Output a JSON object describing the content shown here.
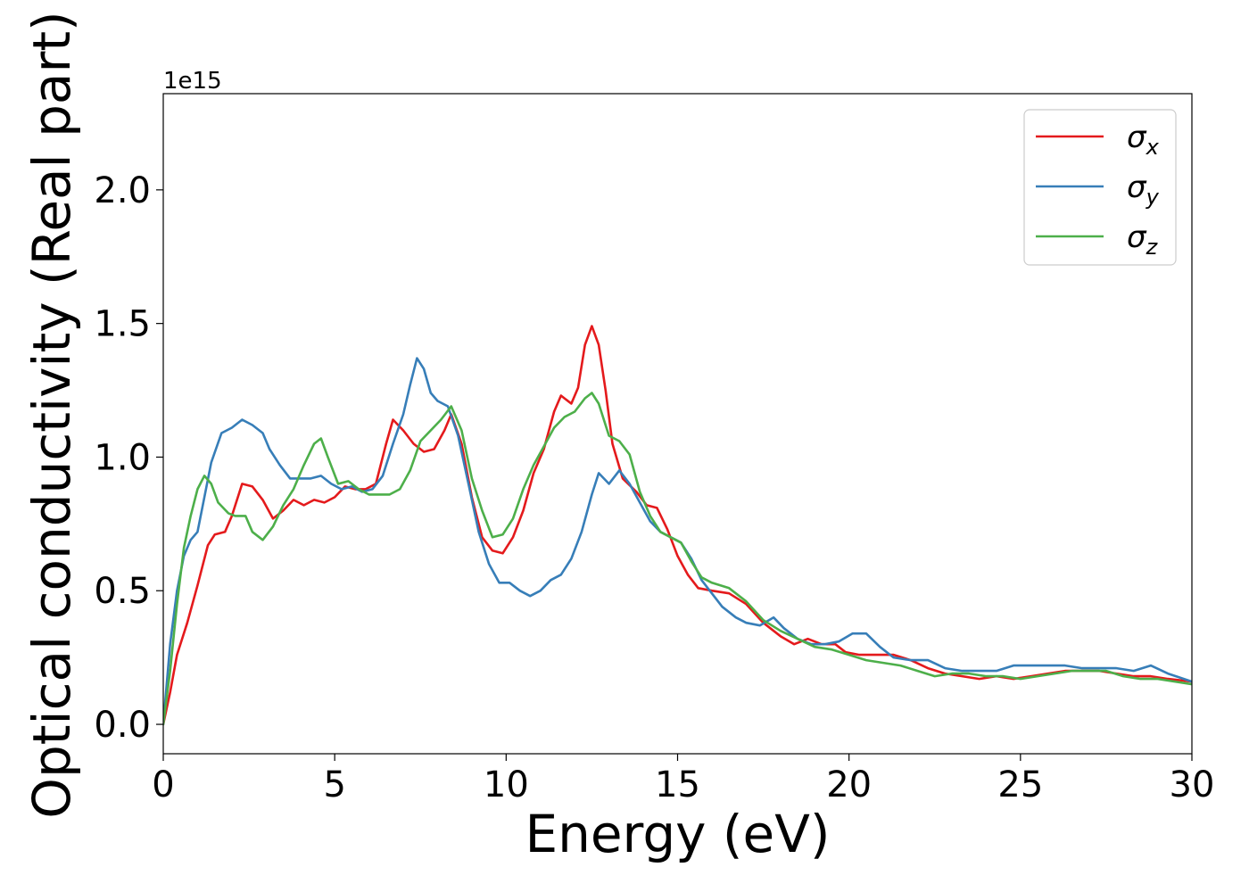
{
  "chart_data": {
    "type": "line",
    "xlabel": "Energy (eV)",
    "ylabel": "Optical conductivity (Real part)",
    "y_offset_label": "1e15",
    "xlim": [
      0,
      30
    ],
    "ylim": [
      -0.11,
      2.36
    ],
    "xticks": [
      0,
      5,
      10,
      15,
      20,
      25,
      30
    ],
    "xtick_labels": [
      "0",
      "5",
      "10",
      "15",
      "20",
      "25",
      "30"
    ],
    "yticks": [
      0.0,
      0.5,
      1.0,
      1.5,
      2.0
    ],
    "ytick_labels": [
      "0.0",
      "0.5",
      "1.0",
      "1.5",
      "2.0"
    ],
    "legend_position": "top-right",
    "grid": false,
    "series": [
      {
        "name": "σx",
        "legend_base": "σ",
        "legend_sub": "x",
        "color": "#e41a1c",
        "points": [
          [
            0,
            0.0
          ],
          [
            0.2,
            0.12
          ],
          [
            0.4,
            0.26
          ],
          [
            0.7,
            0.38
          ],
          [
            1.0,
            0.52
          ],
          [
            1.3,
            0.67
          ],
          [
            1.5,
            0.71
          ],
          [
            1.8,
            0.72
          ],
          [
            2.0,
            0.78
          ],
          [
            2.3,
            0.9
          ],
          [
            2.6,
            0.89
          ],
          [
            2.9,
            0.84
          ],
          [
            3.2,
            0.77
          ],
          [
            3.5,
            0.8
          ],
          [
            3.8,
            0.84
          ],
          [
            4.1,
            0.82
          ],
          [
            4.4,
            0.84
          ],
          [
            4.7,
            0.83
          ],
          [
            5.0,
            0.85
          ],
          [
            5.3,
            0.89
          ],
          [
            5.6,
            0.88
          ],
          [
            5.9,
            0.88
          ],
          [
            6.2,
            0.9
          ],
          [
            6.5,
            1.05
          ],
          [
            6.7,
            1.14
          ],
          [
            7.0,
            1.1
          ],
          [
            7.3,
            1.05
          ],
          [
            7.6,
            1.02
          ],
          [
            7.9,
            1.03
          ],
          [
            8.2,
            1.1
          ],
          [
            8.4,
            1.16
          ],
          [
            8.7,
            1.05
          ],
          [
            9.0,
            0.85
          ],
          [
            9.3,
            0.7
          ],
          [
            9.6,
            0.65
          ],
          [
            9.9,
            0.64
          ],
          [
            10.2,
            0.7
          ],
          [
            10.5,
            0.8
          ],
          [
            10.8,
            0.94
          ],
          [
            11.1,
            1.03
          ],
          [
            11.4,
            1.17
          ],
          [
            11.6,
            1.23
          ],
          [
            11.9,
            1.2
          ],
          [
            12.1,
            1.26
          ],
          [
            12.3,
            1.42
          ],
          [
            12.5,
            1.49
          ],
          [
            12.7,
            1.42
          ],
          [
            12.9,
            1.25
          ],
          [
            13.1,
            1.05
          ],
          [
            13.4,
            0.92
          ],
          [
            13.8,
            0.87
          ],
          [
            14.1,
            0.82
          ],
          [
            14.4,
            0.81
          ],
          [
            14.7,
            0.73
          ],
          [
            15.0,
            0.63
          ],
          [
            15.3,
            0.56
          ],
          [
            15.6,
            0.51
          ],
          [
            16.0,
            0.5
          ],
          [
            16.5,
            0.49
          ],
          [
            17.0,
            0.45
          ],
          [
            17.5,
            0.38
          ],
          [
            18.0,
            0.33
          ],
          [
            18.4,
            0.3
          ],
          [
            18.8,
            0.32
          ],
          [
            19.2,
            0.3
          ],
          [
            19.6,
            0.3
          ],
          [
            19.9,
            0.27
          ],
          [
            20.3,
            0.26
          ],
          [
            20.8,
            0.26
          ],
          [
            21.3,
            0.26
          ],
          [
            21.8,
            0.24
          ],
          [
            22.3,
            0.21
          ],
          [
            22.8,
            0.19
          ],
          [
            23.3,
            0.18
          ],
          [
            23.8,
            0.17
          ],
          [
            24.3,
            0.18
          ],
          [
            24.8,
            0.17
          ],
          [
            25.3,
            0.18
          ],
          [
            25.8,
            0.19
          ],
          [
            26.3,
            0.2
          ],
          [
            26.8,
            0.2
          ],
          [
            27.3,
            0.2
          ],
          [
            27.8,
            0.19
          ],
          [
            28.3,
            0.18
          ],
          [
            28.8,
            0.18
          ],
          [
            29.3,
            0.17
          ],
          [
            30.0,
            0.16
          ]
        ]
      },
      {
        "name": "σy",
        "legend_base": "σ",
        "legend_sub": "y",
        "color": "#377eb8",
        "points": [
          [
            0,
            0.0
          ],
          [
            0.2,
            0.3
          ],
          [
            0.4,
            0.5
          ],
          [
            0.6,
            0.63
          ],
          [
            0.8,
            0.69
          ],
          [
            1.0,
            0.72
          ],
          [
            1.2,
            0.85
          ],
          [
            1.4,
            0.98
          ],
          [
            1.7,
            1.09
          ],
          [
            2.0,
            1.11
          ],
          [
            2.3,
            1.14
          ],
          [
            2.6,
            1.12
          ],
          [
            2.9,
            1.09
          ],
          [
            3.1,
            1.03
          ],
          [
            3.4,
            0.97
          ],
          [
            3.7,
            0.92
          ],
          [
            4.0,
            0.92
          ],
          [
            4.3,
            0.92
          ],
          [
            4.6,
            0.93
          ],
          [
            4.9,
            0.9
          ],
          [
            5.2,
            0.88
          ],
          [
            5.5,
            0.89
          ],
          [
            5.8,
            0.87
          ],
          [
            6.1,
            0.88
          ],
          [
            6.4,
            0.93
          ],
          [
            6.7,
            1.05
          ],
          [
            7.0,
            1.16
          ],
          [
            7.2,
            1.27
          ],
          [
            7.4,
            1.37
          ],
          [
            7.6,
            1.33
          ],
          [
            7.8,
            1.24
          ],
          [
            8.0,
            1.21
          ],
          [
            8.3,
            1.19
          ],
          [
            8.6,
            1.08
          ],
          [
            8.9,
            0.9
          ],
          [
            9.2,
            0.72
          ],
          [
            9.5,
            0.6
          ],
          [
            9.8,
            0.53
          ],
          [
            10.1,
            0.53
          ],
          [
            10.4,
            0.5
          ],
          [
            10.7,
            0.48
          ],
          [
            11.0,
            0.5
          ],
          [
            11.3,
            0.54
          ],
          [
            11.6,
            0.56
          ],
          [
            11.9,
            0.62
          ],
          [
            12.2,
            0.72
          ],
          [
            12.5,
            0.86
          ],
          [
            12.7,
            0.94
          ],
          [
            13.0,
            0.9
          ],
          [
            13.3,
            0.95
          ],
          [
            13.6,
            0.9
          ],
          [
            13.9,
            0.83
          ],
          [
            14.2,
            0.76
          ],
          [
            14.5,
            0.72
          ],
          [
            14.8,
            0.7
          ],
          [
            15.1,
            0.68
          ],
          [
            15.4,
            0.62
          ],
          [
            15.7,
            0.54
          ],
          [
            16.0,
            0.49
          ],
          [
            16.3,
            0.44
          ],
          [
            16.7,
            0.4
          ],
          [
            17.0,
            0.38
          ],
          [
            17.4,
            0.37
          ],
          [
            17.8,
            0.4
          ],
          [
            18.1,
            0.36
          ],
          [
            18.5,
            0.32
          ],
          [
            18.9,
            0.3
          ],
          [
            19.3,
            0.3
          ],
          [
            19.7,
            0.31
          ],
          [
            20.1,
            0.34
          ],
          [
            20.5,
            0.34
          ],
          [
            20.9,
            0.29
          ],
          [
            21.3,
            0.25
          ],
          [
            21.8,
            0.24
          ],
          [
            22.3,
            0.24
          ],
          [
            22.8,
            0.21
          ],
          [
            23.3,
            0.2
          ],
          [
            23.8,
            0.2
          ],
          [
            24.3,
            0.2
          ],
          [
            24.8,
            0.22
          ],
          [
            25.3,
            0.22
          ],
          [
            25.8,
            0.22
          ],
          [
            26.3,
            0.22
          ],
          [
            26.8,
            0.21
          ],
          [
            27.3,
            0.21
          ],
          [
            27.8,
            0.21
          ],
          [
            28.3,
            0.2
          ],
          [
            28.8,
            0.22
          ],
          [
            29.3,
            0.19
          ],
          [
            30.0,
            0.16
          ]
        ]
      },
      {
        "name": "σz",
        "legend_base": "σ",
        "legend_sub": "z",
        "color": "#4daf4a",
        "points": [
          [
            0,
            0.0
          ],
          [
            0.2,
            0.2
          ],
          [
            0.4,
            0.45
          ],
          [
            0.6,
            0.66
          ],
          [
            0.8,
            0.78
          ],
          [
            1.0,
            0.88
          ],
          [
            1.2,
            0.93
          ],
          [
            1.4,
            0.9
          ],
          [
            1.6,
            0.83
          ],
          [
            1.9,
            0.79
          ],
          [
            2.1,
            0.78
          ],
          [
            2.4,
            0.78
          ],
          [
            2.6,
            0.72
          ],
          [
            2.9,
            0.69
          ],
          [
            3.2,
            0.74
          ],
          [
            3.5,
            0.82
          ],
          [
            3.8,
            0.88
          ],
          [
            4.1,
            0.97
          ],
          [
            4.4,
            1.05
          ],
          [
            4.6,
            1.07
          ],
          [
            4.8,
            1.0
          ],
          [
            5.1,
            0.9
          ],
          [
            5.4,
            0.91
          ],
          [
            5.7,
            0.88
          ],
          [
            6.0,
            0.86
          ],
          [
            6.3,
            0.86
          ],
          [
            6.6,
            0.86
          ],
          [
            6.9,
            0.88
          ],
          [
            7.2,
            0.95
          ],
          [
            7.5,
            1.06
          ],
          [
            7.8,
            1.1
          ],
          [
            8.1,
            1.14
          ],
          [
            8.4,
            1.19
          ],
          [
            8.7,
            1.1
          ],
          [
            9.0,
            0.92
          ],
          [
            9.3,
            0.8
          ],
          [
            9.6,
            0.7
          ],
          [
            9.9,
            0.71
          ],
          [
            10.2,
            0.77
          ],
          [
            10.5,
            0.88
          ],
          [
            10.8,
            0.97
          ],
          [
            11.1,
            1.04
          ],
          [
            11.4,
            1.11
          ],
          [
            11.7,
            1.15
          ],
          [
            12.0,
            1.17
          ],
          [
            12.3,
            1.22
          ],
          [
            12.5,
            1.24
          ],
          [
            12.7,
            1.2
          ],
          [
            13.0,
            1.08
          ],
          [
            13.3,
            1.06
          ],
          [
            13.6,
            1.01
          ],
          [
            13.9,
            0.87
          ],
          [
            14.2,
            0.78
          ],
          [
            14.5,
            0.72
          ],
          [
            14.8,
            0.7
          ],
          [
            15.1,
            0.68
          ],
          [
            15.4,
            0.61
          ],
          [
            15.7,
            0.55
          ],
          [
            16.0,
            0.53
          ],
          [
            16.5,
            0.51
          ],
          [
            17.0,
            0.46
          ],
          [
            17.5,
            0.39
          ],
          [
            18.0,
            0.35
          ],
          [
            18.5,
            0.32
          ],
          [
            19.0,
            0.29
          ],
          [
            19.5,
            0.28
          ],
          [
            20.0,
            0.26
          ],
          [
            20.5,
            0.24
          ],
          [
            21.0,
            0.23
          ],
          [
            21.5,
            0.22
          ],
          [
            22.0,
            0.2
          ],
          [
            22.5,
            0.18
          ],
          [
            23.0,
            0.19
          ],
          [
            23.5,
            0.19
          ],
          [
            24.0,
            0.18
          ],
          [
            24.5,
            0.18
          ],
          [
            25.0,
            0.17
          ],
          [
            25.5,
            0.18
          ],
          [
            26.0,
            0.19
          ],
          [
            26.5,
            0.2
          ],
          [
            27.0,
            0.2
          ],
          [
            27.5,
            0.2
          ],
          [
            28.0,
            0.18
          ],
          [
            28.5,
            0.17
          ],
          [
            29.0,
            0.17
          ],
          [
            29.5,
            0.16
          ],
          [
            30.0,
            0.15
          ]
        ]
      }
    ]
  }
}
